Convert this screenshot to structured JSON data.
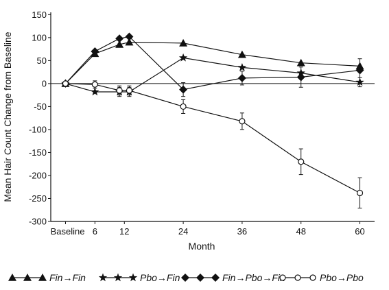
{
  "chart_data": {
    "type": "line",
    "xlabel": "Month",
    "ylabel": "Mean Hair Count Change from Baseline",
    "x_tick_labels": [
      {
        "value": 0,
        "label": "Baseline"
      },
      {
        "value": 6,
        "label": "6"
      },
      {
        "value": 12,
        "label": "12"
      },
      {
        "value": 24,
        "label": "24"
      },
      {
        "value": 36,
        "label": "36"
      },
      {
        "value": 48,
        "label": "48"
      },
      {
        "value": 60,
        "label": "60"
      }
    ],
    "y_ticks": [
      150,
      100,
      50,
      0,
      -50,
      -100,
      -150,
      -200,
      -250,
      -300
    ],
    "xlim": [
      -3,
      63
    ],
    "ylim": [
      -300,
      155
    ],
    "reference_line_y": 0,
    "grid": false,
    "legend_position": "bottom",
    "series": [
      {
        "name": "Fin→Fin",
        "marker": "triangle",
        "color": "#111111",
        "points": [
          [
            0,
            0
          ],
          [
            6,
            65
          ],
          [
            11,
            85
          ],
          [
            13,
            90
          ],
          [
            24,
            88
          ],
          [
            36,
            63
          ],
          [
            48,
            45
          ],
          [
            60,
            38
          ]
        ],
        "error": [
          0,
          0,
          0,
          0,
          0,
          0,
          0,
          0
        ]
      },
      {
        "name": "Pbo→Fin",
        "marker": "star",
        "color": "#111111",
        "points": [
          [
            0,
            0
          ],
          [
            6,
            -18
          ],
          [
            11,
            -18
          ],
          [
            13,
            -18
          ],
          [
            24,
            56
          ],
          [
            36,
            35
          ],
          [
            48,
            23
          ],
          [
            60,
            3
          ]
        ],
        "error": [
          0,
          0,
          10,
          10,
          0,
          0,
          0,
          10
        ]
      },
      {
        "name": "Fin→Pbo→Fin",
        "marker": "diamond",
        "color": "#111111",
        "points": [
          [
            0,
            0
          ],
          [
            6,
            70
          ],
          [
            11,
            98
          ],
          [
            13,
            102
          ],
          [
            24,
            -13
          ],
          [
            36,
            12
          ],
          [
            48,
            14
          ],
          [
            60,
            29
          ]
        ],
        "error": [
          0,
          0,
          0,
          0,
          15,
          15,
          22,
          25
        ]
      },
      {
        "name": "Pbo→Pbo",
        "marker": "circle-open",
        "color": "#111111",
        "points": [
          [
            0,
            0
          ],
          [
            6,
            -2
          ],
          [
            11,
            -15
          ],
          [
            13,
            -15
          ],
          [
            24,
            -50
          ],
          [
            36,
            -82
          ],
          [
            48,
            -170
          ],
          [
            60,
            -238
          ]
        ],
        "error": [
          0,
          8,
          10,
          10,
          15,
          18,
          28,
          33
        ]
      }
    ]
  }
}
